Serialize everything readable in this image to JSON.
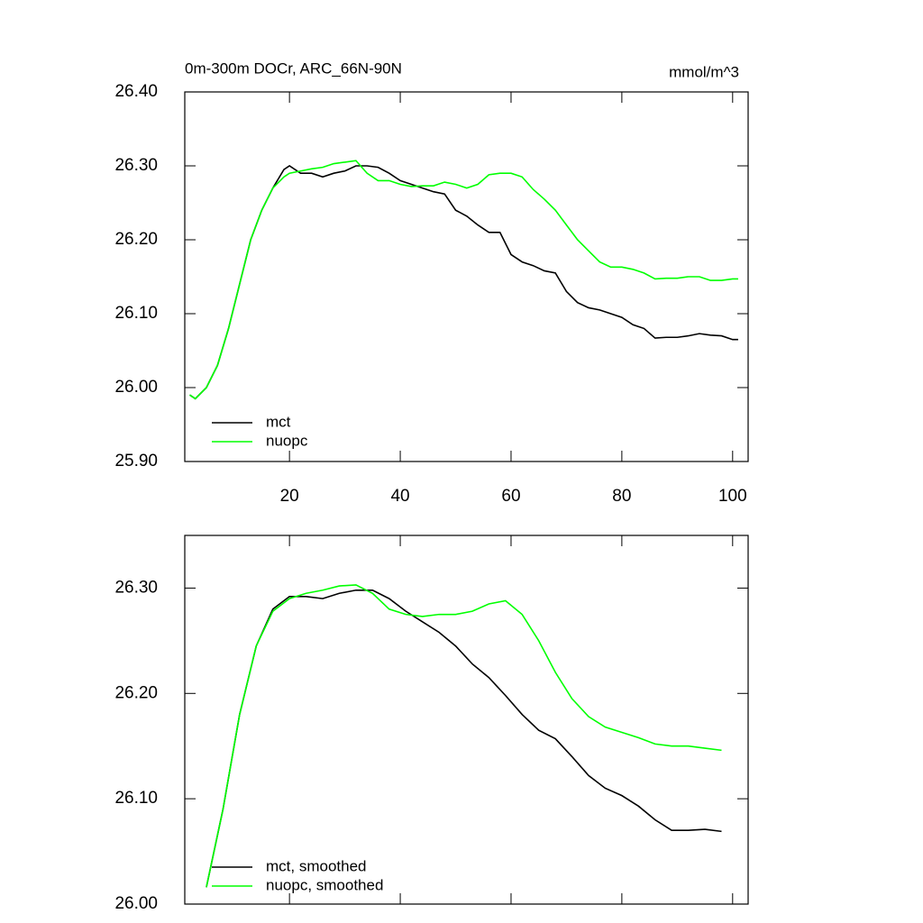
{
  "chart_data": [
    {
      "type": "line",
      "title": "0m-300m DOCr, ARC_66N-90N",
      "units": "mmol/m^3",
      "x": [
        2,
        3,
        5,
        7,
        9,
        11,
        13,
        15,
        17,
        19,
        20,
        22,
        24,
        26,
        28,
        30,
        32,
        34,
        36,
        38,
        40,
        42,
        44,
        46,
        48,
        50,
        52,
        54,
        56,
        58,
        60,
        62,
        64,
        66,
        68,
        70,
        72,
        74,
        76,
        78,
        80,
        82,
        84,
        86,
        88,
        90,
        92,
        94,
        96,
        98,
        100,
        101
      ],
      "series": [
        {
          "name": "mct",
          "color": "#000000",
          "values": [
            25.99,
            25.985,
            26.0,
            26.03,
            26.08,
            26.14,
            26.2,
            26.24,
            26.27,
            26.295,
            26.3,
            26.29,
            26.29,
            26.285,
            26.29,
            26.293,
            26.3,
            26.3,
            26.298,
            26.29,
            26.28,
            26.275,
            26.27,
            26.265,
            26.262,
            26.24,
            26.232,
            26.22,
            26.21,
            26.21,
            26.18,
            26.17,
            26.165,
            26.158,
            26.155,
            26.13,
            26.115,
            26.108,
            26.105,
            26.1,
            26.095,
            26.085,
            26.08,
            26.067,
            26.068,
            26.068,
            26.07,
            26.073,
            26.071,
            26.07,
            26.065,
            26.065
          ]
        },
        {
          "name": "nuopc",
          "color": "#00ff00",
          "values": [
            25.99,
            25.985,
            26.0,
            26.03,
            26.08,
            26.14,
            26.2,
            26.24,
            26.27,
            26.285,
            26.29,
            26.293,
            26.296,
            26.298,
            26.303,
            26.305,
            26.307,
            26.29,
            26.28,
            26.28,
            26.275,
            26.272,
            26.273,
            26.273,
            26.278,
            26.275,
            26.27,
            26.275,
            26.288,
            26.29,
            26.29,
            26.285,
            26.268,
            26.255,
            26.24,
            26.22,
            26.2,
            26.185,
            26.17,
            26.163,
            26.163,
            26.16,
            26.155,
            26.147,
            26.148,
            26.148,
            26.15,
            26.15,
            26.145,
            26.145,
            26.147,
            26.147
          ]
        }
      ],
      "xlim": [
        1.1,
        102.8
      ],
      "xticks": [
        20,
        40,
        60,
        80,
        100
      ],
      "ylim": [
        25.9,
        26.4
      ],
      "yticks": [
        {
          "value": 25.9,
          "label": "25.90"
        },
        {
          "value": 26.0,
          "label": "26.00"
        },
        {
          "value": 26.1,
          "label": "26.10"
        },
        {
          "value": 26.2,
          "label": "26.20"
        },
        {
          "value": 26.3,
          "label": "26.30"
        },
        {
          "value": 26.4,
          "label": "26.40"
        }
      ]
    },
    {
      "type": "line",
      "x": [
        5,
        8,
        11,
        14,
        17,
        20,
        23,
        26,
        29,
        32,
        35,
        38,
        41,
        44,
        47,
        50,
        53,
        56,
        59,
        62,
        65,
        68,
        71,
        74,
        77,
        80,
        83,
        86,
        89,
        92,
        95,
        98
      ],
      "series": [
        {
          "name": "mct, smoothed",
          "color": "#000000",
          "values": [
            26.016,
            26.09,
            26.18,
            26.245,
            26.28,
            26.292,
            26.292,
            26.29,
            26.295,
            26.298,
            26.298,
            26.29,
            26.278,
            26.268,
            26.258,
            26.245,
            26.228,
            26.215,
            26.198,
            26.18,
            26.165,
            26.157,
            26.14,
            26.122,
            26.11,
            26.103,
            26.093,
            26.08,
            26.07,
            26.07,
            26.071,
            26.069
          ]
        },
        {
          "name": "nuopc, smoothed",
          "color": "#00ff00",
          "values": [
            26.016,
            26.09,
            26.18,
            26.245,
            26.278,
            26.29,
            26.295,
            26.298,
            26.302,
            26.303,
            26.295,
            26.28,
            26.275,
            26.273,
            26.275,
            26.275,
            26.278,
            26.285,
            26.288,
            26.275,
            26.25,
            26.22,
            26.195,
            26.178,
            26.168,
            26.163,
            26.158,
            26.152,
            26.15,
            26.15,
            26.148,
            26.146
          ]
        }
      ],
      "xlim": [
        1.1,
        102.8
      ],
      "xticks": [
        20,
        40,
        60,
        80,
        100
      ],
      "ylim": [
        26.0,
        26.35
      ],
      "yticks": [
        {
          "value": 26.0,
          "label": "26.00"
        },
        {
          "value": 26.1,
          "label": "26.10"
        },
        {
          "value": 26.2,
          "label": "26.20"
        },
        {
          "value": 26.3,
          "label": "26.30"
        }
      ]
    }
  ]
}
